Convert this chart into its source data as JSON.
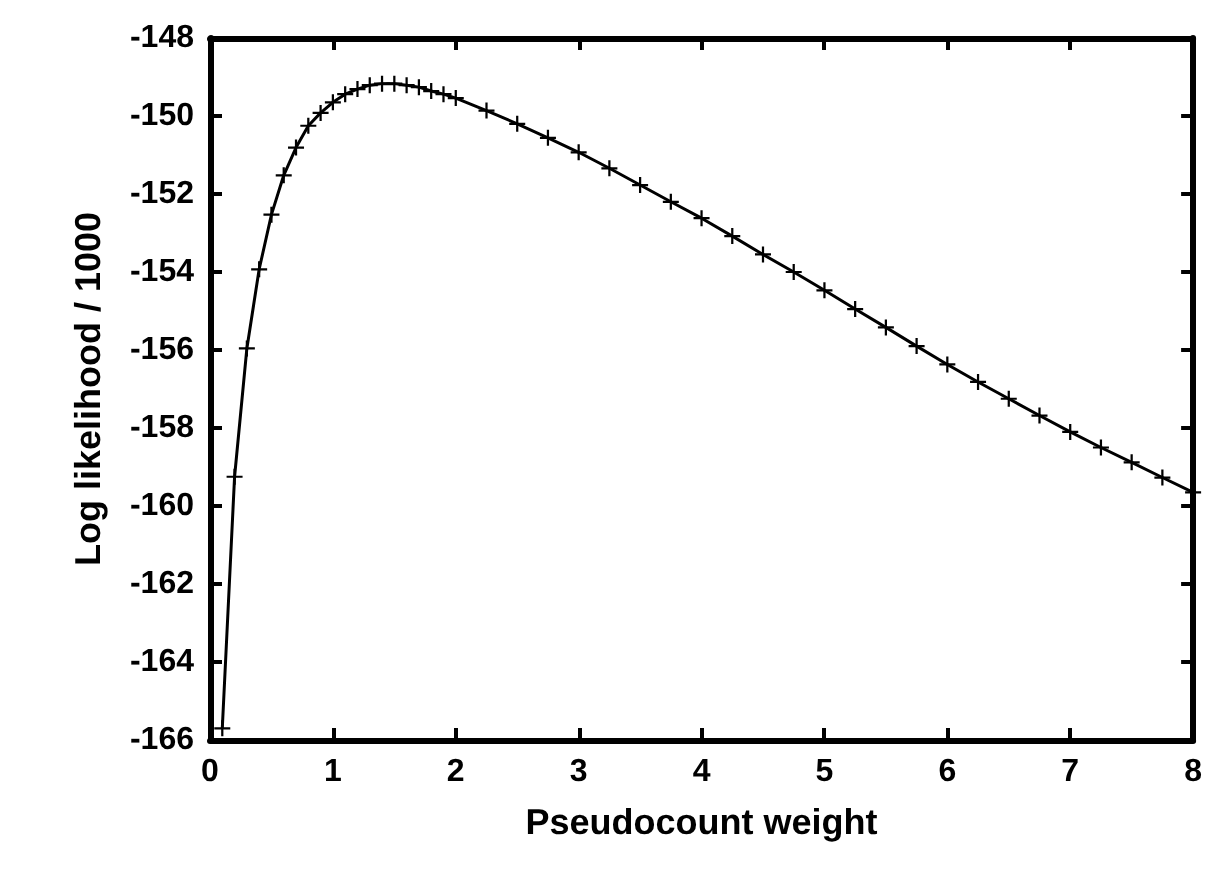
{
  "chart_data": {
    "type": "line",
    "xlabel": "Pseudocount weight",
    "ylabel": "Log likelihood / 1000",
    "x": [
      0.1,
      0.2,
      0.3,
      0.4,
      0.5,
      0.6,
      0.7,
      0.8,
      0.9,
      1.0,
      1.1,
      1.2,
      1.3,
      1.4,
      1.5,
      1.6,
      1.7,
      1.8,
      1.9,
      2.0,
      2.25,
      2.5,
      2.75,
      3.0,
      3.25,
      3.5,
      3.75,
      4.0,
      4.25,
      4.5,
      4.75,
      5.0,
      5.25,
      5.5,
      5.75,
      6.0,
      6.25,
      6.5,
      6.75,
      7.0,
      7.25,
      7.5,
      7.75,
      8.0
    ],
    "series": [
      {
        "color": "#000000",
        "values": [
          -165.7,
          -159.25,
          -155.96,
          -153.93,
          -152.53,
          -151.52,
          -150.81,
          -150.25,
          -149.92,
          -149.65,
          -149.44,
          -149.31,
          -149.21,
          -149.17,
          -149.17,
          -149.21,
          -149.26,
          -149.36,
          -149.44,
          -149.54,
          -149.86,
          -150.2,
          -150.56,
          -150.93,
          -151.34,
          -151.77,
          -152.2,
          -152.62,
          -153.08,
          -153.55,
          -154.0,
          -154.47,
          -154.95,
          -155.42,
          -155.9,
          -156.37,
          -156.82,
          -157.25,
          -157.68,
          -158.1,
          -158.5,
          -158.88,
          -159.27,
          -159.65
        ]
      }
    ],
    "xlim": [
      0,
      8
    ],
    "xticks": [
      0,
      1,
      2,
      3,
      4,
      5,
      6,
      7,
      8
    ],
    "ylim": [
      -166,
      -148
    ],
    "yticks": [
      -166,
      -164,
      -162,
      -160,
      -158,
      -156,
      -154,
      -152,
      -150,
      -148
    ],
    "grid": false,
    "marker": "cross",
    "line_style": "solid"
  }
}
